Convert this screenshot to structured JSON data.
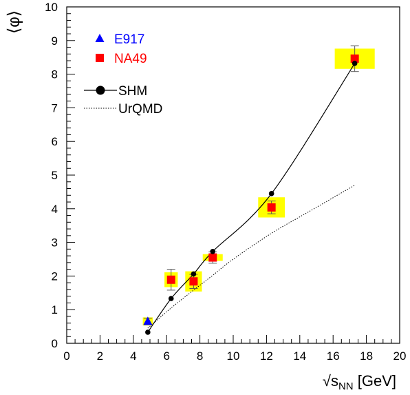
{
  "chart_data": {
    "type": "scatter",
    "xlabel": {
      "root": "√",
      "base": "s",
      "sub": "NN",
      "unit": " [GeV]"
    },
    "ylabel": "⟨φ⟩",
    "xlim": [
      0,
      20
    ],
    "ylim": [
      0,
      10
    ],
    "x_ticks": [
      0,
      2,
      4,
      6,
      8,
      10,
      12,
      14,
      16,
      18,
      20
    ],
    "y_ticks": [
      0,
      1,
      2,
      3,
      4,
      5,
      6,
      7,
      8,
      9,
      10
    ],
    "grid": false,
    "legend_position": "top-left",
    "series": [
      {
        "name": "E917",
        "kind": "marker-triangle",
        "color": "#0000ff",
        "points": [
          {
            "x": 4.87,
            "y": 0.65,
            "err": 0.1,
            "sys_dx": 0.3,
            "sys_dy": 0.12
          }
        ]
      },
      {
        "name": "NA49",
        "kind": "marker-square",
        "color": "#ff0000",
        "band_color": "#ffff00",
        "points": [
          {
            "x": 6.27,
            "y": 1.89,
            "err": 0.31,
            "sys_dx": 0.4,
            "sys_dy": 0.22
          },
          {
            "x": 7.62,
            "y": 1.84,
            "err": 0.21,
            "sys_dx": 0.5,
            "sys_dy": 0.3
          },
          {
            "x": 8.77,
            "y": 2.55,
            "err": 0.17,
            "sys_dx": 0.6,
            "sys_dy": 0.1
          },
          {
            "x": 12.3,
            "y": 4.04,
            "err": 0.19,
            "sys_dx": 0.8,
            "sys_dy": 0.3
          },
          {
            "x": 17.3,
            "y": 8.46,
            "err": 0.38,
            "sys_dx": 1.2,
            "sys_dy": 0.3
          }
        ]
      },
      {
        "name": "SHM",
        "kind": "solid-line-with-dots",
        "color": "#000000",
        "points": [
          {
            "x": 4.87,
            "y": 0.33
          },
          {
            "x": 6.27,
            "y": 1.33
          },
          {
            "x": 7.62,
            "y": 2.06
          },
          {
            "x": 8.77,
            "y": 2.73
          },
          {
            "x": 12.3,
            "y": 4.45
          },
          {
            "x": 17.3,
            "y": 8.32
          }
        ]
      },
      {
        "name": "UrQMD",
        "kind": "dotted-line",
        "color": "#000000",
        "points": [
          {
            "x": 4.87,
            "y": 0.45
          },
          {
            "x": 6.27,
            "y": 1.05
          },
          {
            "x": 7.62,
            "y": 1.58
          },
          {
            "x": 8.77,
            "y": 2.02
          },
          {
            "x": 10.0,
            "y": 2.5
          },
          {
            "x": 12.3,
            "y": 3.27
          },
          {
            "x": 14.5,
            "y": 3.9
          },
          {
            "x": 17.3,
            "y": 4.7
          }
        ]
      }
    ]
  }
}
